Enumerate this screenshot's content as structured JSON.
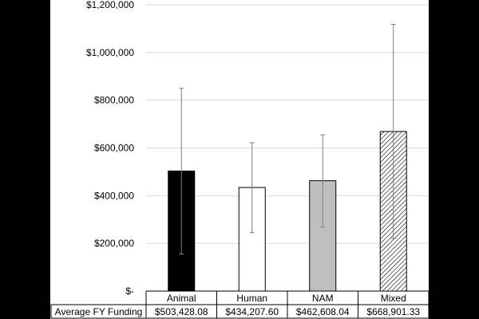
{
  "chart_data": {
    "type": "bar",
    "title": "",
    "xlabel": "",
    "ylabel": "",
    "categories": [
      "Animal",
      "Human",
      "NAM",
      "Mixed"
    ],
    "values": [
      503428.08,
      434207.6,
      462608.04,
      668901.33
    ],
    "error_low": [
      155000,
      245000,
      268000,
      220000
    ],
    "error_high": [
      850000,
      622000,
      655000,
      1118000
    ],
    "ylim": [
      0,
      1200000
    ],
    "y_ticks": [
      0,
      200000,
      400000,
      600000,
      800000,
      1000000,
      1200000
    ],
    "y_tick_labels": [
      "$-",
      "$200,000",
      "$400,000",
      "$600,000",
      "$800,000",
      "$1,000,000",
      "$1,200,000"
    ],
    "grid": true,
    "bar_styles": [
      "solid-black",
      "white",
      "gray",
      "hatched"
    ],
    "colors": {
      "black": "#000000",
      "white": "#ffffff",
      "gray": "#bfbfbf",
      "grid": "#d9d9d9",
      "error": "#7f7f7f"
    },
    "data_table": {
      "row_label": "Average FY Funding",
      "cells": [
        "$503,428.08",
        "$434,207.60",
        "$462,608.04",
        "$668,901.33"
      ]
    }
  }
}
